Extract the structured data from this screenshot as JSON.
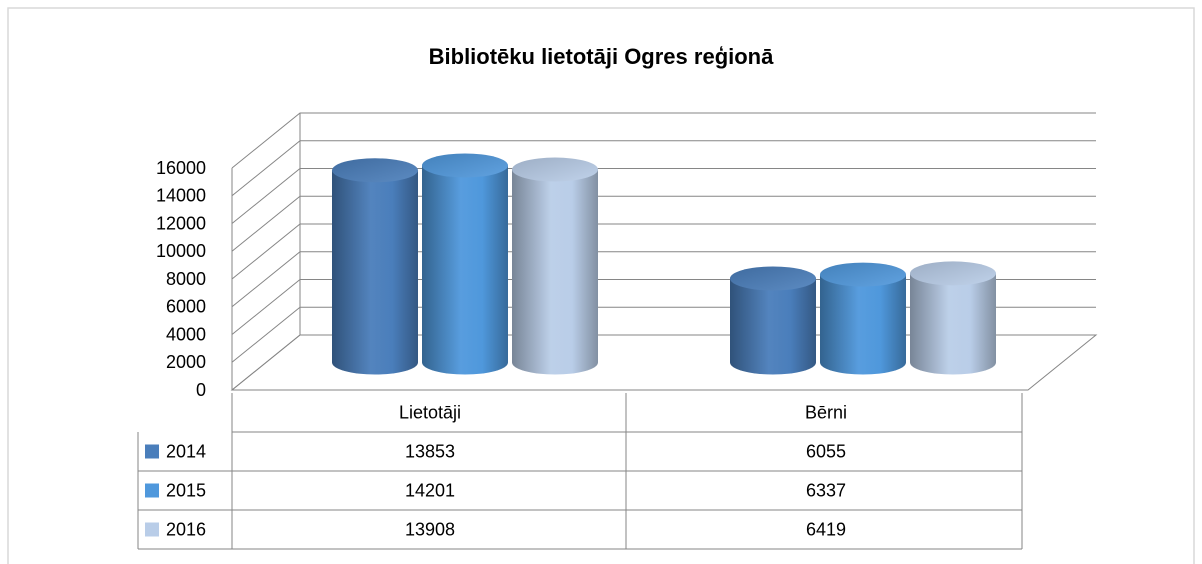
{
  "chart_data": {
    "type": "bar3d",
    "title": "Bibliotēku lietotāji Ogres reģionā",
    "categories": [
      "Lietotāji",
      "Bērni"
    ],
    "series": [
      {
        "name": "2014",
        "color": "#4a7ebb",
        "values": [
          13853,
          6055
        ]
      },
      {
        "name": "2015",
        "color": "#4f98dc",
        "values": [
          14201,
          6337
        ]
      },
      {
        "name": "2016",
        "color": "#b9cde8",
        "values": [
          13908,
          6419
        ]
      }
    ],
    "ylim": [
      0,
      16000
    ],
    "yticks": [
      0,
      2000,
      4000,
      6000,
      8000,
      10000,
      12000,
      14000,
      16000
    ],
    "grid": true,
    "data_table": true
  }
}
